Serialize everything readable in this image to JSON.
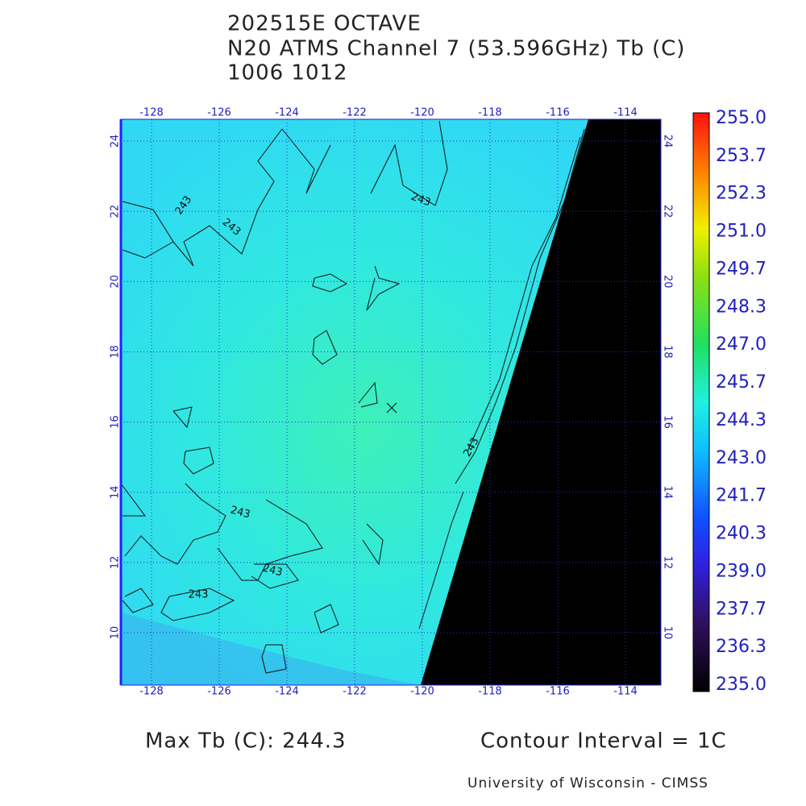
{
  "header": {
    "lines": [
      "202515E OCTAVE",
      "N20 ATMS Channel 7 (53.596GHz) Tb (C)",
      "1006 1012"
    ]
  },
  "map": {
    "lon_ticks": [
      -128,
      -126,
      -124,
      -122,
      -120,
      -118,
      -116,
      -114
    ],
    "lat_ticks": [
      10,
      12,
      14,
      16,
      18,
      20,
      22,
      24
    ],
    "contour_labels": [
      "243",
      "243",
      "243",
      "243",
      "243",
      "243",
      "243"
    ]
  },
  "colorbar": {
    "labels": [
      "255.0",
      "253.7",
      "252.3",
      "251.0",
      "249.7",
      "248.3",
      "247.0",
      "245.7",
      "244.3",
      "243.0",
      "241.7",
      "240.3",
      "239.0",
      "237.7",
      "236.3",
      "235.0"
    ]
  },
  "footer": {
    "max_tb": "Max Tb (C): 244.3",
    "contour_interval": "Contour Interval = 1C",
    "credit": "University of Wisconsin - CIMSS"
  }
}
